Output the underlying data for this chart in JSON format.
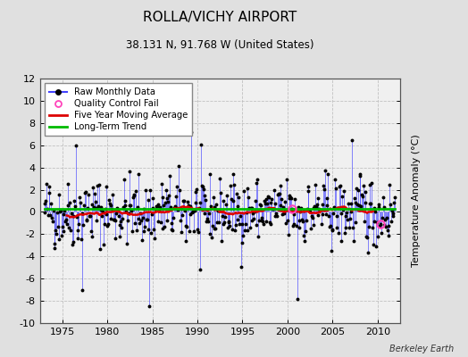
{
  "title": "ROLLA/VICHY AIRPORT",
  "subtitle": "38.131 N, 91.768 W (United States)",
  "ylabel": "Temperature Anomaly (°C)",
  "watermark": "Berkeley Earth",
  "ylim": [
    -10,
    12
  ],
  "xlim": [
    1972.5,
    2012.5
  ],
  "xticks": [
    1975,
    1980,
    1985,
    1990,
    1995,
    2000,
    2005,
    2010
  ],
  "yticks": [
    -10,
    -8,
    -6,
    -4,
    -2,
    0,
    2,
    4,
    6,
    8,
    10,
    12
  ],
  "bg_color": "#e0e0e0",
  "plot_bg_color": "#f0f0f0",
  "raw_color": "#4444ff",
  "ma_color": "#dd0000",
  "trend_color": "#00bb00",
  "qc_color": "#ff44bb",
  "seed": 42,
  "start_year": 1973,
  "end_year": 2012,
  "trend_intercept": 0.3,
  "trend_slope": 0.0,
  "ma_window": 60,
  "spikes": {
    "idx_1976_hi": 42,
    "val_1976_hi": 6.0,
    "idx_1977_lo": 51,
    "val_1977_lo": -7.0,
    "idx_1984_lo": 140,
    "val_1984_lo": -8.5,
    "idx_1989_hi": 196,
    "val_1989_hi": 7.2,
    "idx_1990_lo": 208,
    "val_1990_lo": -5.2,
    "idx_2001_lo": 337,
    "val_2001_lo": -7.8,
    "idx_2007_hi": 410,
    "val_2007_hi": 6.5
  },
  "qc_fail_times": [
    2000.5,
    2010.3
  ]
}
